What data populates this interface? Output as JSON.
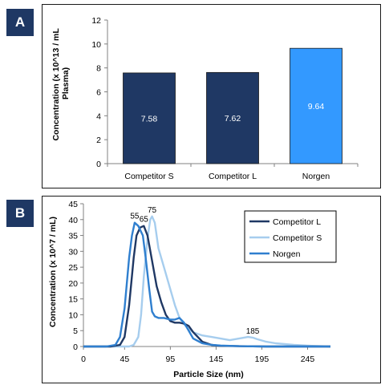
{
  "panels": {
    "a_label": "A",
    "b_label": "B"
  },
  "colors": {
    "competitor_s_bar": "#1f3864",
    "competitor_l_bar": "#1f3864",
    "norgen_bar": "#3399ff",
    "competitor_l_line": "#1f3864",
    "competitor_s_line": "#a6cdee",
    "norgen_line": "#2f7fcf"
  },
  "chart_data": [
    {
      "type": "bar",
      "categories": [
        "Competitor S",
        "Competitor L",
        "Norgen"
      ],
      "values": [
        7.58,
        7.62,
        9.64
      ],
      "value_labels": [
        "7.58",
        "7.62",
        "9.64"
      ],
      "ylabel_line1": "Concentration (x 10^13 / mL",
      "ylabel_line2": "Plasma)",
      "xlabel": "",
      "ylim": [
        0,
        12
      ],
      "yticks": [
        0,
        2,
        4,
        6,
        8,
        10,
        12
      ],
      "grid": false,
      "legend": "none"
    },
    {
      "type": "line",
      "xlabel": "Particle Size (nm)",
      "ylabel": "Concentration (x 10^7 / mL)",
      "xlim": [
        0,
        270
      ],
      "ylim": [
        0,
        45
      ],
      "xticks": [
        0,
        45,
        95,
        145,
        195,
        245
      ],
      "yticks": [
        0,
        5,
        10,
        15,
        20,
        25,
        30,
        35,
        40,
        45
      ],
      "grid": false,
      "legend": "top-right",
      "series": [
        {
          "name": "Competitor L",
          "x": [
            0,
            30,
            40,
            45,
            50,
            55,
            58,
            62,
            66,
            70,
            75,
            80,
            85,
            90,
            95,
            100,
            105,
            110,
            115,
            120,
            130,
            140,
            150,
            170,
            200,
            230,
            270
          ],
          "y": [
            0,
            0,
            0.5,
            3,
            13,
            28,
            35,
            37.5,
            38,
            35,
            27,
            19,
            14,
            10,
            8,
            7.5,
            7.5,
            7.2,
            6.5,
            4.5,
            1.5,
            0.5,
            0.2,
            0.1,
            0,
            0,
            0
          ]
        },
        {
          "name": "Competitor S",
          "x": [
            0,
            45,
            50,
            55,
            60,
            63,
            66,
            70,
            73,
            75,
            78,
            82,
            88,
            95,
            100,
            105,
            110,
            115,
            120,
            130,
            140,
            150,
            160,
            170,
            180,
            185,
            190,
            200,
            210,
            230,
            250,
            270
          ],
          "y": [
            0,
            0,
            0,
            0.5,
            3,
            10,
            22,
            34,
            40,
            41,
            39,
            31,
            25,
            18,
            13,
            9,
            7,
            5.5,
            4.5,
            3.5,
            3,
            2.5,
            2,
            2.5,
            3,
            2.8,
            2.3,
            1.5,
            1,
            0.5,
            0.2,
            0
          ]
        },
        {
          "name": "Norgen",
          "x": [
            0,
            25,
            35,
            40,
            45,
            50,
            53,
            56,
            60,
            65,
            68,
            72,
            75,
            78,
            82,
            88,
            95,
            100,
            105,
            110,
            115,
            120,
            130,
            140,
            150,
            170,
            200,
            230,
            270
          ],
          "y": [
            0,
            0,
            0.5,
            3,
            12,
            28,
            35,
            39,
            38,
            35,
            28,
            18,
            11,
            9.5,
            9,
            9,
            8.5,
            8.5,
            9,
            7.5,
            5,
            2.5,
            1,
            0.5,
            0.3,
            0.1,
            0,
            0,
            0
          ]
        }
      ],
      "annotations": [
        {
          "text": "55",
          "x": 56,
          "y": 39
        },
        {
          "text": "65",
          "x": 66,
          "y": 38
        },
        {
          "text": "75",
          "x": 75,
          "y": 41
        },
        {
          "text": "185",
          "x": 185,
          "y": 2.8
        }
      ]
    }
  ]
}
